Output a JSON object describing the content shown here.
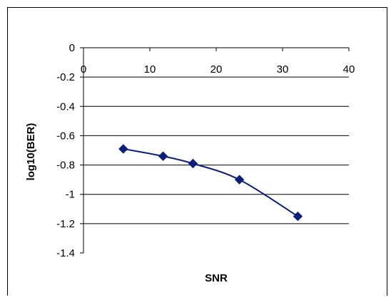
{
  "chart_data": {
    "type": "line",
    "title": "",
    "xlabel": "SNR",
    "ylabel": "log10(BER)",
    "xlim": [
      0,
      40
    ],
    "ylim": [
      -1.4,
      0
    ],
    "x_ticks": [
      0,
      10,
      20,
      30,
      40
    ],
    "y_ticks": [
      0,
      -0.2,
      -0.4,
      -0.6,
      -0.8,
      -1,
      -1.2,
      -1.4
    ],
    "grid": "horizontal",
    "legend": "none",
    "series": [
      {
        "color": "#0b1f7a",
        "marker": "diamond",
        "smooth": true,
        "points": [
          {
            "x": 6,
            "y": -0.69
          },
          {
            "x": 12,
            "y": -0.74
          },
          {
            "x": 16.5,
            "y": -0.79
          },
          {
            "x": 23.5,
            "y": -0.9
          },
          {
            "x": 32.3,
            "y": -1.15
          }
        ]
      }
    ]
  }
}
